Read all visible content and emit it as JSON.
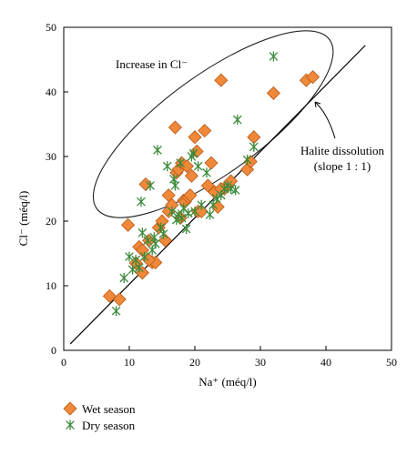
{
  "chart_data": {
    "type": "scatter",
    "xlabel": "Na⁺ (méq/l)",
    "ylabel": "Cl⁻ (méq/l)",
    "xlim": [
      0,
      50
    ],
    "ylim": [
      0,
      50
    ],
    "xticks": [
      "0",
      "10",
      "20",
      "30",
      "40",
      "50"
    ],
    "yticks": [
      "0",
      "10",
      "20",
      "30",
      "40",
      "50"
    ],
    "grid": false,
    "legend_position": "bottom-left",
    "reference_line": {
      "label": "Halite dissolution",
      "sublabel": "(slope 1 : 1)",
      "x": [
        1,
        46
      ],
      "y": [
        1,
        47.2
      ]
    },
    "annotation": {
      "text": "Increase in Cl⁻"
    },
    "series": [
      {
        "name": "Wet season",
        "marker": "diamond",
        "color": "#f0883a",
        "x": [
          7.0,
          8.5,
          9.8,
          11.0,
          11.5,
          12.0,
          12.5,
          13.0,
          13.5,
          14.0,
          14.5,
          15.0,
          15.5,
          16.0,
          16.0,
          16.5,
          17.0,
          17.2,
          17.5,
          17.8,
          18.0,
          18.3,
          18.5,
          18.8,
          19.0,
          19.3,
          19.5,
          20.0,
          20.3,
          20.5,
          21.0,
          21.5,
          22.0,
          22.5,
          23.0,
          23.5,
          24.0,
          24.5,
          25.5,
          28.0,
          28.5,
          29.0,
          32.0,
          37.0,
          38.0,
          12.0,
          13.0,
          24.0
        ],
        "y": [
          8.4,
          7.9,
          19.4,
          13.5,
          16.0,
          15.5,
          25.7,
          17.0,
          13.6,
          13.6,
          19.0,
          20.0,
          17.0,
          24.0,
          21.5,
          22.5,
          34.5,
          27.5,
          28.0,
          20.5,
          29.0,
          23.2,
          23.0,
          28.5,
          23.7,
          24.0,
          27.0,
          33.0,
          30.8,
          21.5,
          21.5,
          34.0,
          25.5,
          29.0,
          24.5,
          22.2,
          41.8,
          25.0,
          26.2,
          28.0,
          29.2,
          33.0,
          39.8,
          41.8,
          42.3,
          12.0,
          14.0,
          25.0
        ]
      },
      {
        "name": "Dry season",
        "marker": "asterisk",
        "color": "#3a8a3a",
        "x": [
          8.0,
          9.2,
          10.0,
          10.5,
          11.0,
          11.5,
          12.0,
          12.3,
          12.8,
          13.2,
          13.5,
          14.0,
          14.3,
          14.8,
          15.2,
          15.8,
          16.5,
          17.0,
          17.5,
          17.8,
          18.0,
          18.3,
          18.7,
          19.0,
          19.5,
          20.0,
          20.5,
          21.0,
          21.8,
          22.3,
          22.8,
          23.3,
          24.0,
          24.5,
          25.0,
          25.5,
          26.5,
          28.0,
          29.0,
          32.0,
          11.8,
          13.8,
          16.8,
          19.8,
          26.2,
          17.2
        ],
        "y": [
          6.1,
          11.2,
          14.5,
          12.5,
          14.0,
          12.8,
          18.2,
          14.5,
          17.0,
          25.5,
          15.5,
          16.5,
          31.0,
          19.0,
          18.0,
          28.5,
          21.5,
          25.5,
          21.0,
          29.0,
          20.5,
          22.0,
          18.8,
          21.2,
          30.0,
          21.5,
          28.5,
          22.5,
          27.5,
          21.0,
          22.5,
          23.5,
          24.0,
          25.0,
          25.5,
          25.0,
          35.7,
          29.5,
          31.5,
          45.5,
          23.0,
          17.5,
          26.5,
          30.5,
          24.8,
          20.2
        ]
      }
    ]
  }
}
